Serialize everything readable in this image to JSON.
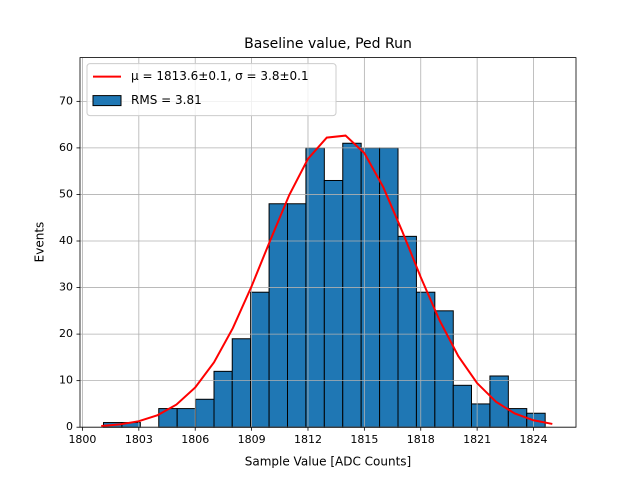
{
  "chart_data": {
    "type": "histogram",
    "title": "Baseline value, Ped Run",
    "xlabel": "Sample Value [ADC Counts]",
    "ylabel": "Events",
    "bins": [
      1801.12,
      1802.1,
      1803.08,
      1804.06,
      1805.04,
      1806.02,
      1807.0,
      1807.97,
      1808.95,
      1809.93,
      1810.91,
      1811.89,
      1812.87,
      1813.85,
      1814.83,
      1815.81,
      1816.79,
      1817.77,
      1818.75,
      1819.73,
      1820.7,
      1821.68,
      1822.66,
      1823.64,
      1824.62
    ],
    "counts": [
      1,
      1,
      0,
      4,
      4,
      6,
      12,
      19,
      29,
      48,
      48,
      60,
      53,
      61,
      60,
      60,
      41,
      29,
      25,
      9,
      5,
      11,
      4,
      3
    ],
    "name": "RMS = 3.81",
    "color": "#1f77b4",
    "edgecolor": "#000000",
    "fit": {
      "name": "μ = 1813.6±0.1, σ = 3.8±0.1",
      "color": "#ff0000",
      "x": [
        1801,
        1802,
        1803,
        1804,
        1805,
        1806,
        1807,
        1808,
        1809,
        1810,
        1811,
        1812,
        1813,
        1814,
        1815,
        1816,
        1817,
        1818,
        1819,
        1820,
        1821,
        1822,
        1823,
        1824,
        1825
      ],
      "y": [
        0.26,
        0.6,
        1.29,
        2.59,
        4.86,
        8.53,
        13.94,
        21.27,
        30.28,
        40.22,
        49.85,
        57.66,
        62.22,
        62.65,
        58.87,
        51.61,
        42.22,
        32.22,
        22.95,
        15.25,
        9.46,
        5.47,
        2.95,
        1.49,
        0.7
      ]
    },
    "xlim": [
      1799.87,
      1826.26
    ],
    "ylim": [
      0,
      79.4
    ],
    "xticks": [
      1800,
      1803,
      1806,
      1809,
      1812,
      1815,
      1818,
      1821,
      1824
    ],
    "yticks": [
      0,
      10,
      20,
      30,
      40,
      50,
      60,
      70
    ],
    "grid": true,
    "legend": "upper left"
  }
}
